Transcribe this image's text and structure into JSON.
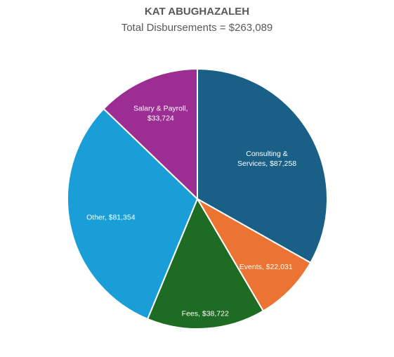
{
  "chart_data": {
    "type": "pie",
    "title": "KAT ABUGHAZALEH",
    "subtitle": "Total Disbursements = $263,089",
    "slices": [
      {
        "category": "Consulting & Services",
        "value": 87258,
        "label_lines": [
          "Consulting &",
          "Services, $87,258"
        ],
        "color": "#1a5f85"
      },
      {
        "category": "Events",
        "value": 22031,
        "label_lines": [
          "Events, $22,031"
        ],
        "color": "#ec7433"
      },
      {
        "category": "Fees",
        "value": 38722,
        "label_lines": [
          "Fees, $38,722"
        ],
        "color": "#1e6b23"
      },
      {
        "category": "Other",
        "value": 81354,
        "label_lines": [
          "Other, $81,354"
        ],
        "color": "#1a9ed8"
      },
      {
        "category": "Salary & Payroll",
        "value": 33724,
        "label_lines": [
          "Salary & Payroll,",
          "$33,724"
        ],
        "color": "#9c2d93"
      }
    ]
  }
}
